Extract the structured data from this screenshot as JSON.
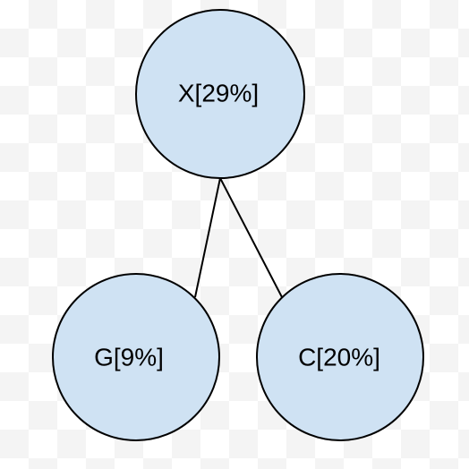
{
  "diagram": {
    "style": {
      "node_fill": "#cfe2f3",
      "node_stroke": "#000000",
      "edge_stroke": "#000000"
    },
    "nodes": {
      "x": {
        "label": "X[29%]"
      },
      "g": {
        "label": "G[9%]"
      },
      "c": {
        "label": "C[20%]"
      }
    },
    "edges": [
      {
        "from": "X[29%]",
        "to": "G[9%]"
      },
      {
        "from": "X[29%]",
        "to": "C[20%]"
      }
    ]
  }
}
